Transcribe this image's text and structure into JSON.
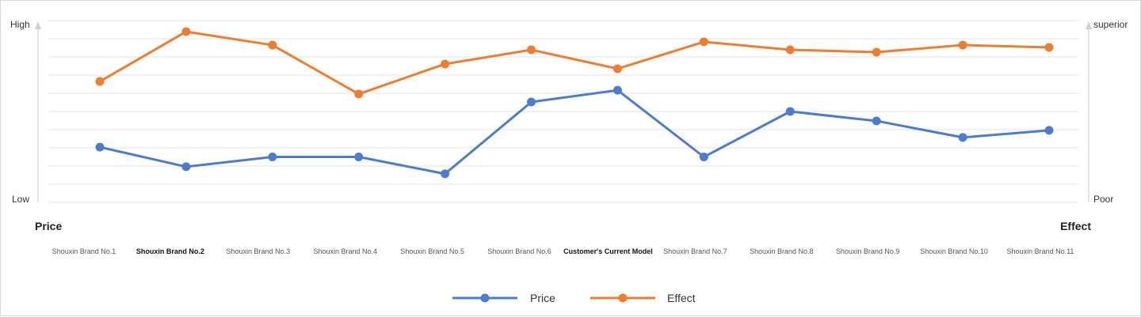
{
  "chart_data": {
    "type": "line",
    "categories": [
      "Shouxin Brand No.1",
      "Shouxin Brand No.2",
      "Shouxin Brand No.3",
      "Shouxin Brand No.4",
      "Shouxin Brand No.5",
      "Shouxin Brand No.6",
      "Customer's Current Model",
      "Shouxin Brand No.7",
      "Shouxin Brand No.8",
      "Shouxin Brand No.9",
      "Shouxin Brand No.10",
      "Shouxin Brand No.11"
    ],
    "highlighted_categories": [
      1,
      6
    ],
    "series": [
      {
        "name": "Price",
        "color": "#4e7ccc",
        "values": [
          30.4,
          19.6,
          25.0,
          25.0,
          15.7,
          55.2,
          61.7,
          25.0,
          50.0,
          44.8,
          35.7,
          39.6
        ]
      },
      {
        "name": "Effect",
        "color": "#ed7d31",
        "values": [
          66.5,
          93.9,
          86.5,
          59.6,
          76.1,
          83.9,
          73.5,
          88.3,
          83.9,
          82.6,
          86.5,
          85.2
        ]
      }
    ],
    "ylim": [
      0,
      100
    ],
    "left_axis": {
      "title": "Price",
      "top_label": "High",
      "bottom_label": "Low"
    },
    "right_axis": {
      "title": "Effect",
      "top_label": "superior",
      "bottom_label": "Poor"
    },
    "grid": true,
    "legend_position": "bottom"
  }
}
